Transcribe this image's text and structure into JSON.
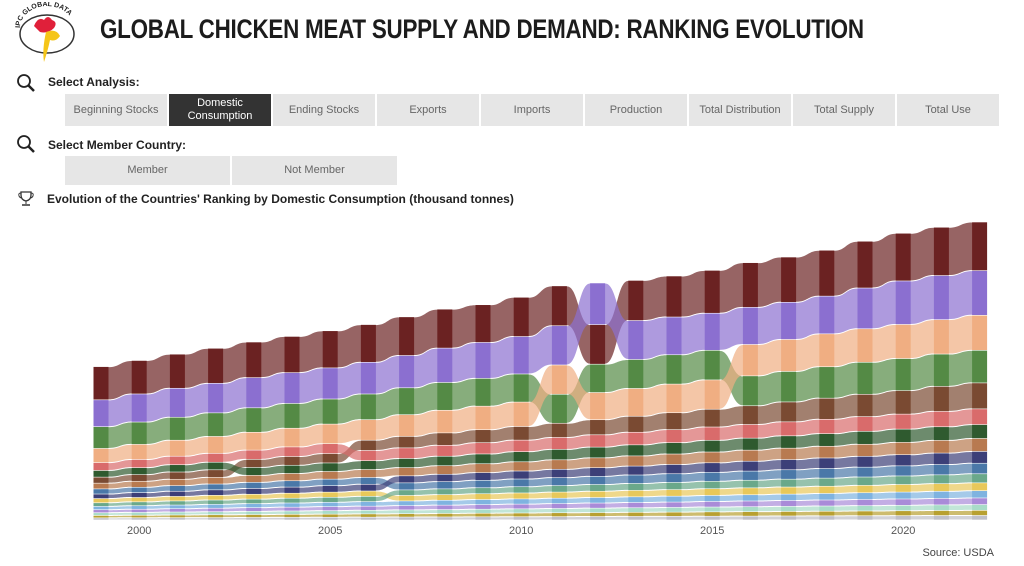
{
  "header": {
    "logo_text": "IPC GLOBAL DATA",
    "title": "GLOBAL CHICKEN MEAT SUPPLY AND DEMAND: RANKING EVOLUTION"
  },
  "analysis": {
    "label": "Select Analysis:",
    "options": [
      "Beginning Stocks",
      "Domestic Consumption",
      "Ending Stocks",
      "Exports",
      "Imports",
      "Production",
      "Total Distribution",
      "Total Supply",
      "Total Use"
    ],
    "selected": "Domestic Consumption"
  },
  "member": {
    "label": "Select Member Country:",
    "options": [
      "Member",
      "Not Member"
    ]
  },
  "chart_title": "Evolution of the Countries' Ranking by Domestic Consumption (thousand tonnes)",
  "source": "Source: USDA",
  "chart_data": {
    "type": "bump-stacked-bar",
    "title": "Evolution of the Countries' Ranking by Domestic Consumption (thousand tonnes)",
    "unit": "thousand tonnes",
    "x": [
      1999,
      2000,
      2001,
      2002,
      2003,
      2004,
      2005,
      2006,
      2007,
      2008,
      2009,
      2010,
      2011,
      2012,
      2013,
      2014,
      2015,
      2016,
      2017,
      2018,
      2019,
      2020,
      2021,
      2022
    ],
    "x_ticks": [
      "2000",
      "2005",
      "2010",
      "2015",
      "2020"
    ],
    "y_axis_visible": false,
    "grid": false,
    "ordering": "largest on top each year",
    "series": [
      {
        "color": "#6b2222",
        "values": [
          11000,
          11100,
          11300,
          11600,
          11800,
          12000,
          12300,
          12500,
          12800,
          12900,
          12500,
          13000,
          13200,
          13100,
          13300,
          13600,
          14200,
          14800,
          15000,
          15200,
          15500,
          15800,
          16000,
          16100
        ]
      },
      {
        "color": "#8b6fd0",
        "values": [
          8900,
          9300,
          9600,
          9800,
          10000,
          10200,
          10300,
          10500,
          10700,
          11400,
          11900,
          12400,
          13000,
          13800,
          12900,
          12500,
          12300,
          12300,
          12300,
          12500,
          13500,
          14400,
          14600,
          14800
        ]
      },
      {
        "color": "#548a45",
        "values": [
          7200,
          7400,
          7600,
          7800,
          8100,
          8200,
          8300,
          8500,
          8900,
          9200,
          9200,
          9300,
          9600,
          9400,
          9600,
          9700,
          9800,
          9900,
          10100,
          10400,
          10600,
          10600,
          10700,
          10800
        ]
      },
      {
        "color": "#f0ae82",
        "values": [
          4700,
          5000,
          5300,
          5600,
          5900,
          6200,
          6500,
          6800,
          7200,
          7500,
          7800,
          8100,
          9700,
          9000,
          9200,
          9500,
          9700,
          10400,
          10600,
          10900,
          11100,
          11300,
          11400,
          11600
        ]
      },
      {
        "color": "#7a4a32",
        "values": [
          2000,
          2200,
          2400,
          2500,
          2700,
          2900,
          3100,
          3400,
          3800,
          4100,
          4300,
          4500,
          4700,
          5000,
          5300,
          5600,
          5900,
          6200,
          6600,
          7000,
          7400,
          7800,
          8300,
          8600
        ]
      },
      {
        "color": "#d96b6b",
        "values": [
          2600,
          2710,
          2830,
          2940,
          3050,
          3170,
          3280,
          3390,
          3500,
          3620,
          3730,
          3840,
          3960,
          4070,
          4180,
          4300,
          4410,
          4520,
          4630,
          4750,
          4860,
          4970,
          5090,
          5200
        ]
      },
      {
        "color": "#2f5a2f",
        "values": [
          2200,
          2300,
          2410,
          2510,
          2620,
          2720,
          2830,
          2930,
          3030,
          3140,
          3240,
          3350,
          3450,
          3560,
          3660,
          3770,
          3870,
          3970,
          4080,
          4180,
          4290,
          4390,
          4500,
          4600
        ]
      },
      {
        "color": "#b87a50",
        "values": [
          1900,
          2000,
          2110,
          2210,
          2320,
          2420,
          2530,
          2630,
          2730,
          2840,
          2940,
          3050,
          3150,
          3260,
          3360,
          3470,
          3570,
          3670,
          3780,
          3880,
          3990,
          4090,
          4200,
          4300
        ]
      },
      {
        "color": "#4a78a8",
        "values": [
          1700,
          1780,
          1860,
          1930,
          2010,
          2090,
          2170,
          2250,
          2330,
          2400,
          2480,
          2560,
          2640,
          2720,
          2800,
          2870,
          2950,
          3030,
          3110,
          3190,
          3270,
          3340,
          3420,
          3500
        ]
      },
      {
        "color": "#3c3f78",
        "values": [
          1500,
          1600,
          1710,
          1810,
          1920,
          2020,
          2130,
          2230,
          2330,
          2440,
          2540,
          2650,
          2750,
          2860,
          2960,
          3070,
          3170,
          3270,
          3380,
          3480,
          3590,
          3690,
          3800,
          3900
        ]
      },
      {
        "color": "#e8c85a",
        "values": [
          1400,
          1450,
          1500,
          1560,
          1610,
          1660,
          1710,
          1770,
          1820,
          1870,
          1920,
          1970,
          2030,
          2080,
          2130,
          2180,
          2240,
          2290,
          2340,
          2390,
          2440,
          2500,
          2550,
          2600
        ]
      },
      {
        "color": "#6aa88a",
        "values": [
          1200,
          1280,
          1360,
          1430,
          1510,
          1590,
          1670,
          1750,
          1830,
          1900,
          1980,
          2060,
          2140,
          2220,
          2300,
          2370,
          2450,
          2530,
          2610,
          2690,
          2770,
          2840,
          2920,
          3000
        ]
      },
      {
        "color": "#7fb3e0",
        "values": [
          1100,
          1160,
          1210,
          1270,
          1330,
          1380,
          1440,
          1500,
          1550,
          1610,
          1670,
          1720,
          1780,
          1830,
          1890,
          1950,
          2000,
          2060,
          2120,
          2170,
          2230,
          2290,
          2340,
          2400
        ]
      },
      {
        "color": "#a98bd8",
        "values": [
          1000,
          1050,
          1100,
          1160,
          1210,
          1260,
          1310,
          1370,
          1420,
          1470,
          1520,
          1570,
          1630,
          1680,
          1730,
          1780,
          1840,
          1890,
          1940,
          1990,
          2040,
          2100,
          2150,
          2200
        ]
      },
      {
        "color": "#a8dcc8",
        "values": [
          900,
          940,
          990,
          1030,
          1070,
          1120,
          1160,
          1200,
          1250,
          1290,
          1340,
          1380,
          1420,
          1470,
          1510,
          1550,
          1600,
          1640,
          1680,
          1730,
          1770,
          1810,
          1860,
          1900
        ]
      },
      {
        "color": "#b8a030",
        "values": [
          800,
          840,
          880,
          920,
          960,
          1000,
          1030,
          1070,
          1110,
          1150,
          1190,
          1230,
          1270,
          1310,
          1350,
          1390,
          1430,
          1470,
          1500,
          1540,
          1580,
          1620,
          1660,
          1700
        ]
      },
      {
        "color": "#c0c0c8",
        "values": [
          700,
          730,
          770,
          800,
          840,
          870,
          910,
          940,
          980,
          1010,
          1050,
          1080,
          1120,
          1150,
          1190,
          1220,
          1260,
          1290,
          1330,
          1360,
          1400,
          1430,
          1470,
          1500
        ]
      }
    ]
  }
}
